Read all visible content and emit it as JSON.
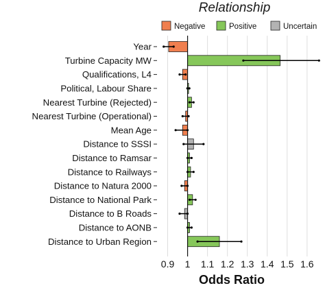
{
  "chart_data": {
    "type": "bar",
    "orientation": "horizontal",
    "baseline": 1,
    "xlabel": "Odds Ratio",
    "xlim": [
      0.85,
      1.69
    ],
    "xticks": [
      0.9,
      1,
      1.1,
      1.2,
      1.3,
      1.4,
      1.5,
      1.6
    ],
    "grid": "vertical",
    "legend": {
      "title": "Relationship",
      "position": "top",
      "entries": [
        {
          "name": "Negative",
          "color": "#f07f4f"
        },
        {
          "name": "Positive",
          "color": "#86c75a"
        },
        {
          "name": "Uncertain",
          "color": "#b3b3b3"
        }
      ]
    },
    "categories": [
      "Year",
      "Turbine Capacity MW",
      "Qualifications, L4",
      "Political, Labour Share",
      "Nearest Turbine (Rejected)",
      "Nearest Turbine (Operational)",
      "Mean Age",
      "Distance to SSSI",
      "Distance to Ramsar",
      "Distance to Railways",
      "Distance to Natura 2000",
      "Distance to National Park",
      "Distance to B Roads",
      "Distance to AONB",
      "Distance to Urban Region"
    ],
    "values": [
      0.905,
      1.465,
      0.975,
      1.004,
      1.02,
      0.99,
      0.975,
      1.03,
      1.01,
      1.015,
      0.985,
      1.025,
      0.985,
      1.01,
      1.16
    ],
    "ci_low": [
      0.88,
      1.28,
      0.96,
      0.999,
      1.01,
      0.975,
      0.94,
      0.98,
      1.0,
      1.0,
      0.97,
      1.01,
      0.96,
      1.0,
      1.05
    ],
    "ci_high": [
      0.93,
      1.66,
      0.99,
      1.009,
      1.03,
      1.005,
      1.0,
      1.08,
      1.02,
      1.03,
      1.0,
      1.04,
      1.0,
      1.02,
      1.27
    ],
    "relationship": [
      "Negative",
      "Positive",
      "Negative",
      "Positive",
      "Positive",
      "Negative",
      "Negative",
      "Uncertain",
      "Positive",
      "Positive",
      "Negative",
      "Positive",
      "Uncertain",
      "Positive",
      "Positive"
    ]
  }
}
